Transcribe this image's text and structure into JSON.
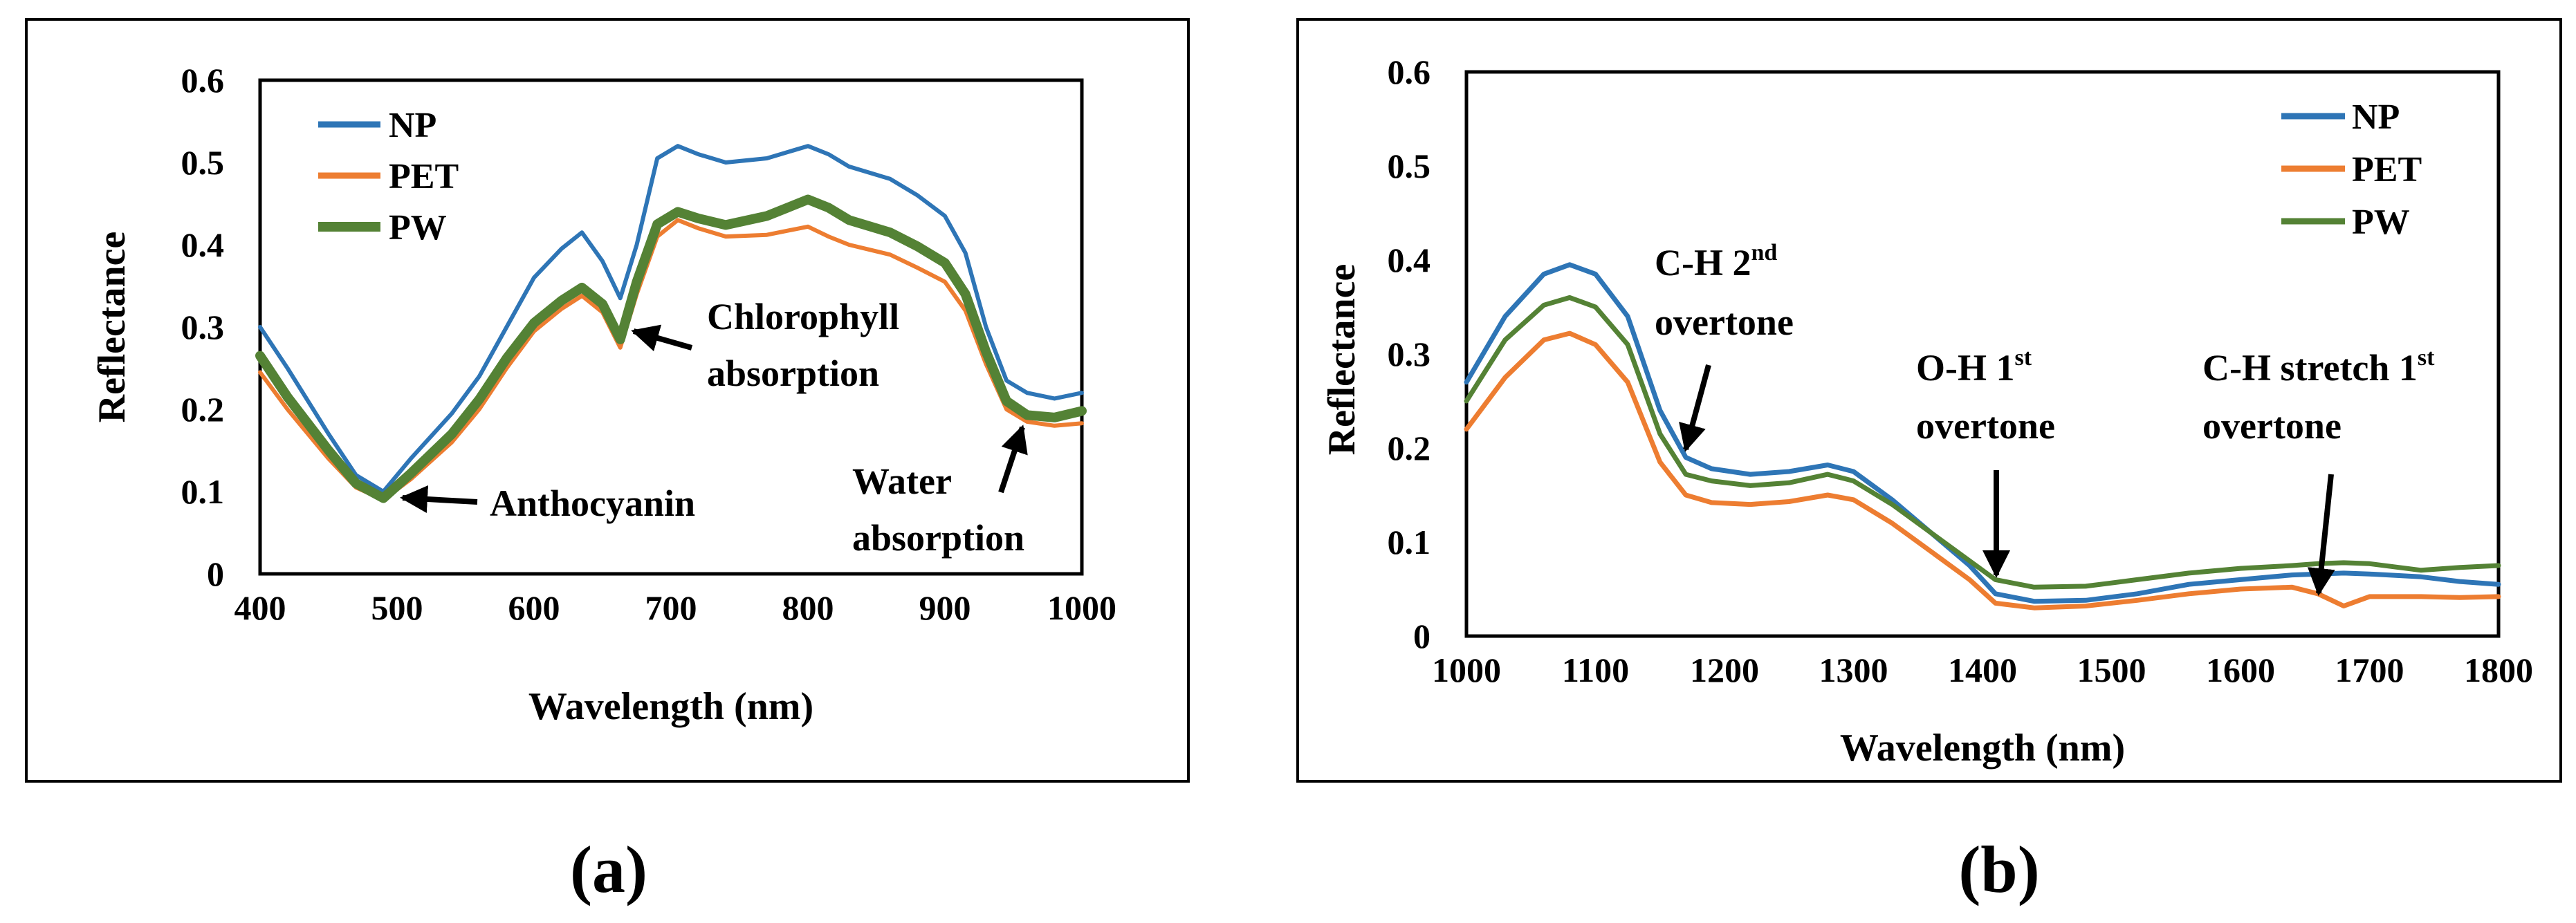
{
  "captions": {
    "a": "(a)",
    "b": "(b)"
  },
  "chart_data": [
    {
      "panel": "(a)",
      "type": "line",
      "xlabel": "Wavelength (nm)",
      "ylabel": "Reflectance",
      "xlim": [
        400,
        1000
      ],
      "ylim": [
        0,
        0.6
      ],
      "xticks": [
        400,
        500,
        600,
        700,
        800,
        900,
        1000
      ],
      "yticks": [
        0,
        0.1,
        0.2,
        0.3,
        0.4,
        0.5,
        0.6
      ],
      "ytick_labels": [
        "0",
        "0.1",
        "0.2",
        "0.3",
        "0.4",
        "0.5",
        "0.6"
      ],
      "legend": "top-left",
      "grid": false,
      "x": [
        400,
        420,
        450,
        470,
        490,
        510,
        540,
        560,
        580,
        600,
        620,
        635,
        650,
        663,
        675,
        690,
        705,
        720,
        740,
        770,
        800,
        815,
        830,
        860,
        880,
        900,
        915,
        930,
        945,
        960,
        980,
        1000
      ],
      "series": [
        {
          "name": "NP",
          "color": "#2E75B6",
          "values": [
            0.3,
            0.25,
            0.17,
            0.12,
            0.1,
            0.14,
            0.195,
            0.24,
            0.3,
            0.36,
            0.395,
            0.415,
            0.38,
            0.335,
            0.4,
            0.505,
            0.52,
            0.51,
            0.5,
            0.505,
            0.52,
            0.51,
            0.495,
            0.48,
            0.46,
            0.435,
            0.39,
            0.3,
            0.235,
            0.22,
            0.213,
            0.22
          ]
        },
        {
          "name": "PET",
          "color": "#ED7D31",
          "values": [
            0.245,
            0.2,
            0.14,
            0.105,
            0.09,
            0.115,
            0.16,
            0.2,
            0.25,
            0.295,
            0.322,
            0.338,
            0.318,
            0.275,
            0.34,
            0.41,
            0.43,
            0.42,
            0.41,
            0.412,
            0.422,
            0.41,
            0.4,
            0.388,
            0.372,
            0.355,
            0.32,
            0.255,
            0.2,
            0.185,
            0.18,
            0.183
          ]
        },
        {
          "name": "PW",
          "color": "#548235",
          "values": [
            0.265,
            0.215,
            0.15,
            0.11,
            0.092,
            0.122,
            0.17,
            0.212,
            0.262,
            0.305,
            0.332,
            0.348,
            0.328,
            0.285,
            0.355,
            0.425,
            0.44,
            0.432,
            0.424,
            0.435,
            0.455,
            0.445,
            0.43,
            0.415,
            0.398,
            0.378,
            0.34,
            0.27,
            0.21,
            0.193,
            0.19,
            0.198
          ]
        }
      ],
      "annotations": [
        {
          "text": "Anthocyanin",
          "points_to": [
            492,
            0.095
          ]
        },
        {
          "text": "Chlorophyll",
          "text2": "absorption",
          "points_to": [
            668,
            0.29
          ]
        },
        {
          "text": "Water",
          "text2": "absorption",
          "points_to": [
            962,
            0.18
          ]
        }
      ]
    },
    {
      "panel": "(b)",
      "type": "line",
      "xlabel": "Wavelength (nm)",
      "ylabel": "Reflectance",
      "xlim": [
        1000,
        1800
      ],
      "ylim": [
        0,
        0.6
      ],
      "xticks": [
        1000,
        1100,
        1200,
        1300,
        1400,
        1500,
        1600,
        1700,
        1800
      ],
      "yticks": [
        0,
        0.1,
        0.2,
        0.3,
        0.4,
        0.5,
        0.6
      ],
      "ytick_labels": [
        "0",
        "0.1",
        "0.2",
        "0.3",
        "0.4",
        "0.5",
        "0.6"
      ],
      "legend": "top-right",
      "grid": false,
      "x": [
        1000,
        1030,
        1060,
        1080,
        1100,
        1125,
        1150,
        1170,
        1190,
        1220,
        1250,
        1280,
        1300,
        1330,
        1360,
        1390,
        1410,
        1440,
        1480,
        1520,
        1560,
        1600,
        1640,
        1660,
        1680,
        1700,
        1740,
        1770,
        1800
      ],
      "series": [
        {
          "name": "NP",
          "color": "#2E75B6",
          "values": [
            0.27,
            0.34,
            0.385,
            0.395,
            0.385,
            0.34,
            0.24,
            0.19,
            0.178,
            0.172,
            0.175,
            0.182,
            0.175,
            0.145,
            0.11,
            0.075,
            0.045,
            0.037,
            0.038,
            0.045,
            0.055,
            0.06,
            0.065,
            0.066,
            0.067,
            0.066,
            0.063,
            0.058,
            0.055
          ]
        },
        {
          "name": "PET",
          "color": "#ED7D31",
          "values": [
            0.22,
            0.275,
            0.315,
            0.322,
            0.31,
            0.27,
            0.185,
            0.15,
            0.142,
            0.14,
            0.143,
            0.15,
            0.145,
            0.12,
            0.09,
            0.06,
            0.035,
            0.03,
            0.032,
            0.038,
            0.045,
            0.05,
            0.052,
            0.045,
            0.032,
            0.042,
            0.042,
            0.041,
            0.042
          ]
        },
        {
          "name": "PW",
          "color": "#548235",
          "values": [
            0.25,
            0.315,
            0.352,
            0.36,
            0.35,
            0.31,
            0.215,
            0.172,
            0.165,
            0.16,
            0.163,
            0.172,
            0.165,
            0.14,
            0.11,
            0.08,
            0.06,
            0.052,
            0.053,
            0.06,
            0.067,
            0.072,
            0.075,
            0.077,
            0.078,
            0.077,
            0.07,
            0.073,
            0.075
          ]
        }
      ],
      "annotations": [
        {
          "text": "C-H 2",
          "sup": "nd",
          "text2": "overtone",
          "points_to": [
            1165,
            0.19
          ]
        },
        {
          "text": "O-H 1",
          "sup": "st",
          "text2": "overtone",
          "points_to": [
            1413,
            0.06
          ]
        },
        {
          "text": "C-H stretch 1",
          "sup": "st",
          "text2": "overtone",
          "points_to": [
            1663,
            0.045
          ]
        }
      ]
    }
  ]
}
